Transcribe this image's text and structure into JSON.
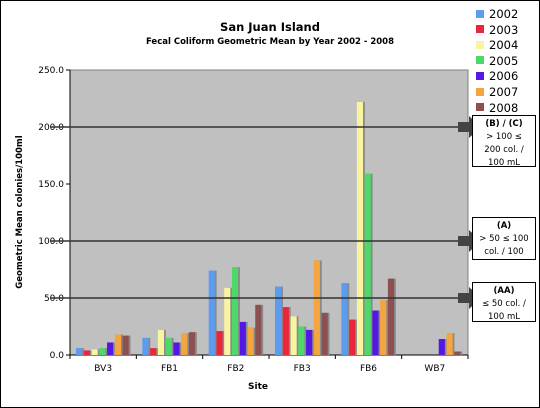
{
  "chart_data": {
    "type": "bar",
    "title": "San Juan Island",
    "subtitle": "Fecal Coliform Geometric Mean by Year 2002 - 2008",
    "xlabel": "Site",
    "ylabel": "Geometric Mean  colonies/100ml",
    "ylim": [
      0,
      250
    ],
    "yticks": [
      "0.0",
      "50.0",
      "100.0",
      "150.0",
      "200.0",
      "250.0"
    ],
    "categories": [
      "BV3",
      "FB1",
      "FB2",
      "FB3",
      "FB6",
      "WB7"
    ],
    "grid": false,
    "legend_position": "top-right",
    "series": [
      {
        "name": "2002",
        "color": "#5b9bf0",
        "values": [
          6,
          15,
          74,
          60,
          63,
          null
        ]
      },
      {
        "name": "2003",
        "color": "#e8283a",
        "values": [
          4,
          6,
          21,
          42,
          31,
          null
        ]
      },
      {
        "name": "2004",
        "color": "#f8f4a0",
        "values": [
          5,
          22,
          59,
          34,
          222,
          null
        ]
      },
      {
        "name": "2005",
        "color": "#4fd86a",
        "values": [
          6,
          15,
          77,
          25,
          159,
          null
        ]
      },
      {
        "name": "2006",
        "color": "#5418e4",
        "values": [
          11,
          11,
          29,
          22,
          39,
          14
        ]
      },
      {
        "name": "2007",
        "color": "#f4a540",
        "values": [
          18,
          19,
          24,
          83,
          48,
          19
        ]
      },
      {
        "name": "2008",
        "color": "#8c5050",
        "values": [
          17,
          20,
          44,
          37,
          67,
          3
        ]
      }
    ],
    "reference_lines": [
      {
        "value": 200,
        "label_title": "(B) / (C)",
        "label_lines": [
          "> 100 ≤",
          "200 col. /",
          "100 mL"
        ]
      },
      {
        "value": 100,
        "label_title": "(A)",
        "label_lines": [
          "> 50 ≤ 100",
          "col. / 100"
        ]
      },
      {
        "value": 50,
        "label_title": "(AA)",
        "label_lines": [
          "≤ 50 col. /",
          "100 mL"
        ]
      }
    ]
  },
  "colors": {
    "plot_background": "#c0c0c0",
    "reference_line": "#333333",
    "arrow": "#444444"
  }
}
